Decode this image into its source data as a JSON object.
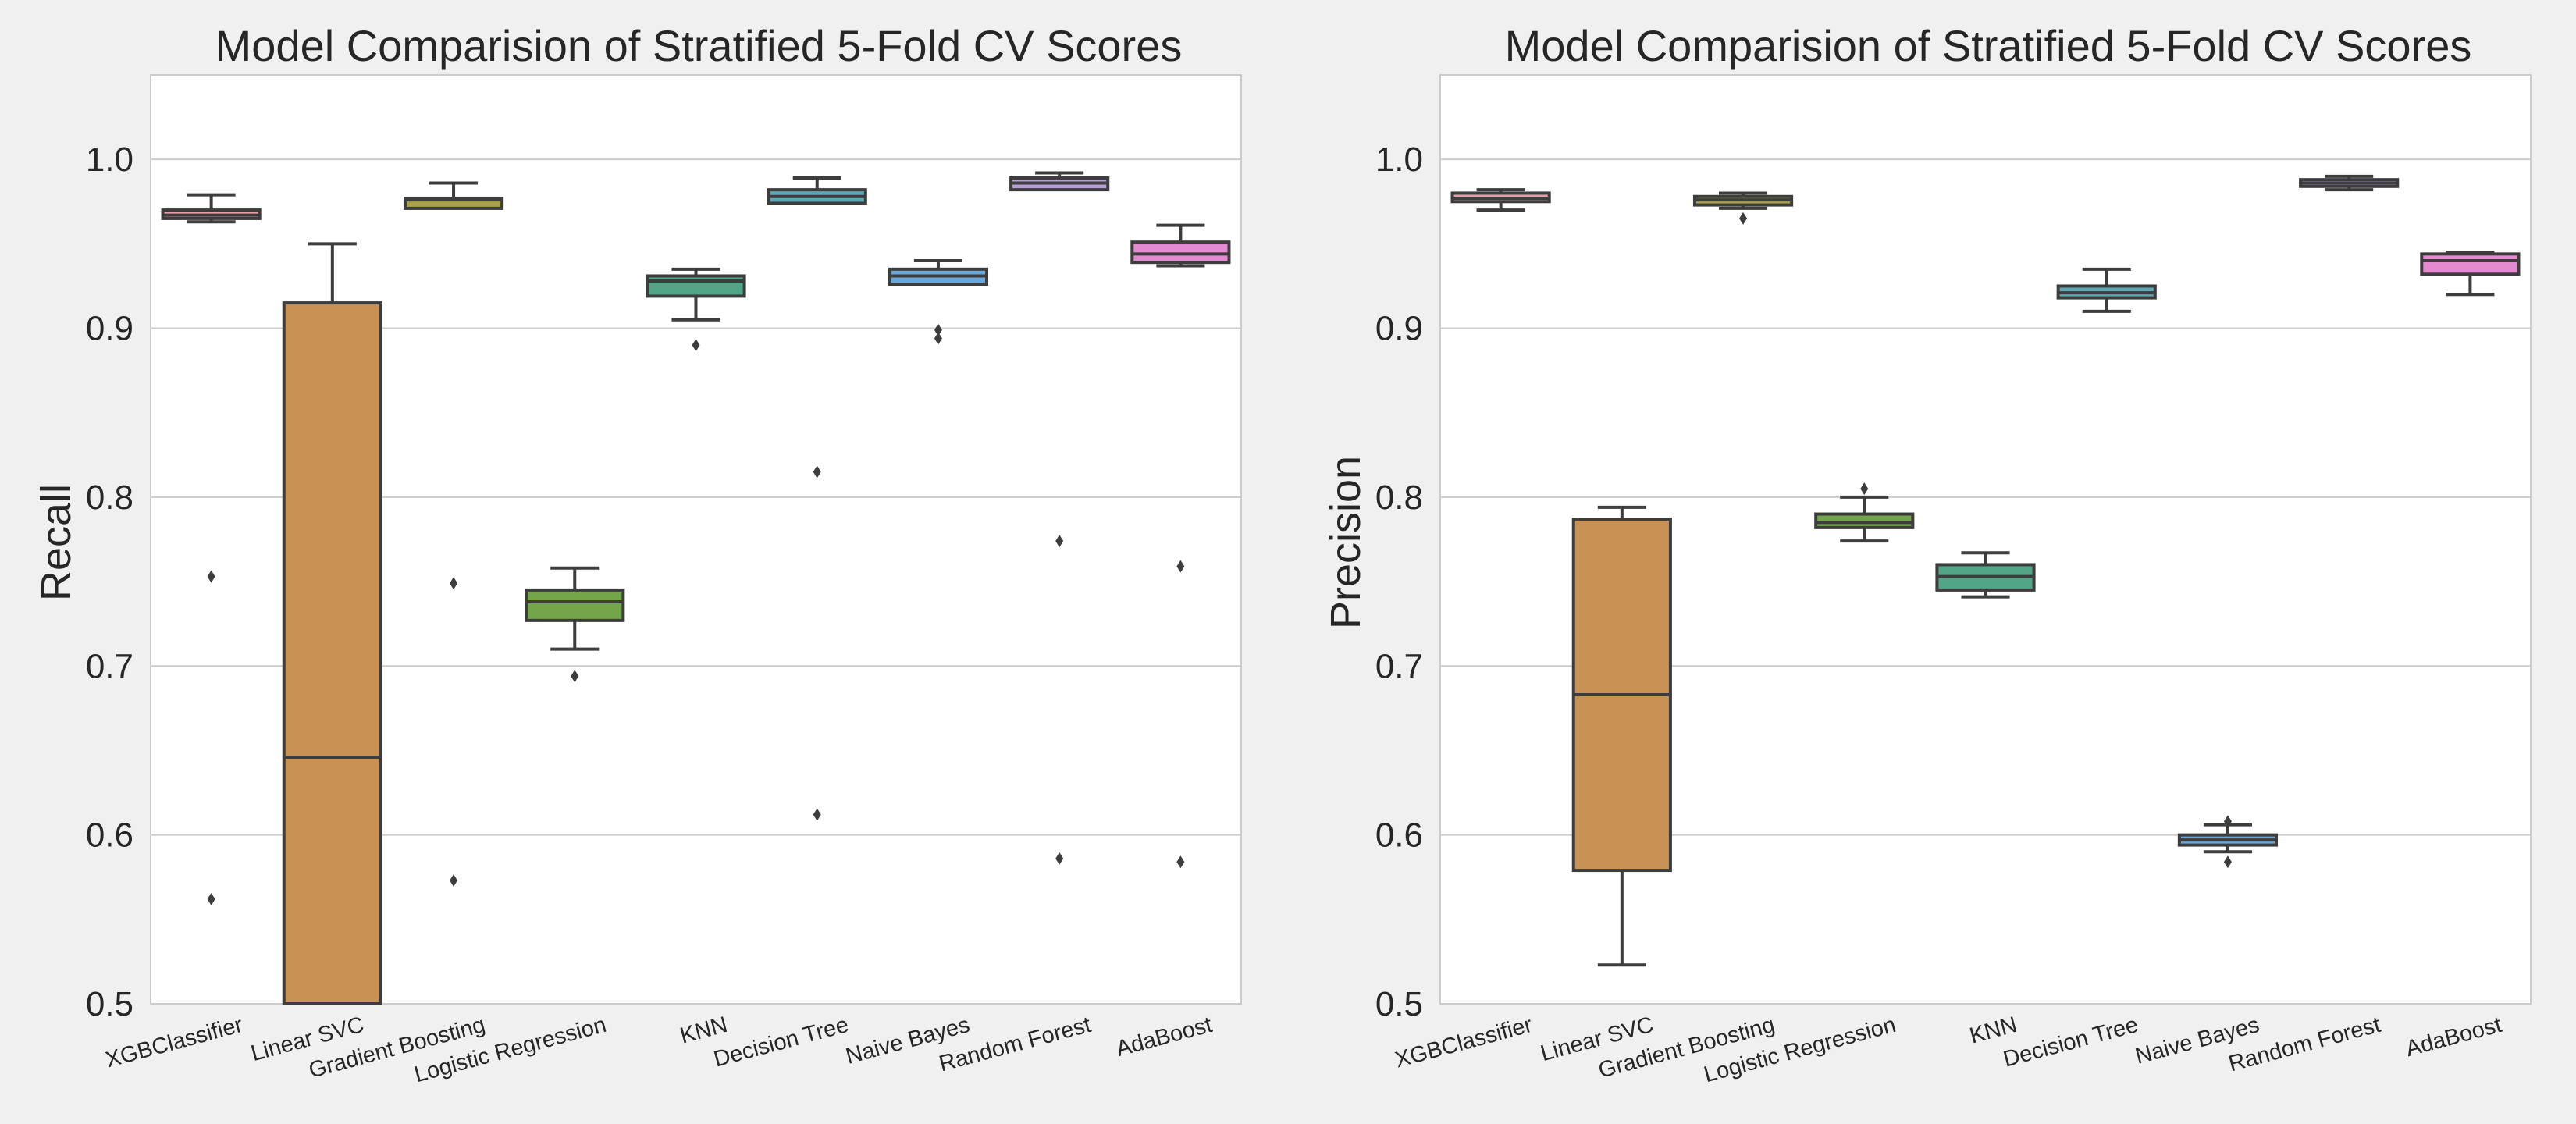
{
  "chart_data": [
    {
      "type": "box",
      "title": "Model Comparision of Stratified 5-Fold CV Scores",
      "xlabel": "",
      "ylabel": "Recall",
      "ylim": [
        0.5,
        1.05
      ],
      "yticks": [
        "0.5",
        "0.6",
        "0.7",
        "0.8",
        "0.9",
        "1.0"
      ],
      "grid": true,
      "categories": [
        "XGBClassifier",
        "Linear SVC",
        "Gradient Boosting",
        "Logistic Regression",
        "KNN",
        "Decision Tree",
        "Naive Bayes",
        "Random Forest",
        "AdaBoost"
      ],
      "boxes": [
        {
          "color": "#e8a0a8",
          "whisker_low": 0.963,
          "q1": 0.965,
          "median": 0.967,
          "q3": 0.97,
          "whisker_high": 0.979,
          "outliers": [
            0.753,
            0.562
          ]
        },
        {
          "color": "#c99255",
          "whisker_low": 0.5,
          "q1": 0.5,
          "median": 0.646,
          "q3": 0.915,
          "whisker_high": 0.95,
          "outliers": []
        },
        {
          "color": "#a9a245",
          "whisker_low": 0.971,
          "q1": 0.971,
          "median": 0.976,
          "q3": 0.977,
          "whisker_high": 0.986,
          "outliers": [
            0.749,
            0.573
          ]
        },
        {
          "color": "#73a649",
          "whisker_low": 0.71,
          "q1": 0.727,
          "median": 0.738,
          "q3": 0.745,
          "whisker_high": 0.758,
          "outliers": [
            0.694
          ]
        },
        {
          "color": "#52a587",
          "whisker_low": 0.905,
          "q1": 0.919,
          "median": 0.928,
          "q3": 0.931,
          "whisker_high": 0.935,
          "outliers": [
            0.89
          ]
        },
        {
          "color": "#5fa6b5",
          "whisker_low": 0.974,
          "q1": 0.974,
          "median": 0.978,
          "q3": 0.982,
          "whisker_high": 0.989,
          "outliers": [
            0.815,
            0.612
          ]
        },
        {
          "color": "#6ba6d9",
          "whisker_low": 0.926,
          "q1": 0.926,
          "median": 0.931,
          "q3": 0.935,
          "whisker_high": 0.94,
          "outliers": [
            0.899,
            0.894
          ]
        },
        {
          "color": "#b79ed6",
          "whisker_low": 0.982,
          "q1": 0.982,
          "median": 0.986,
          "q3": 0.989,
          "whisker_high": 0.992,
          "outliers": [
            0.774,
            0.586
          ]
        },
        {
          "color": "#e38ad0",
          "whisker_low": 0.937,
          "q1": 0.939,
          "median": 0.944,
          "q3": 0.951,
          "whisker_high": 0.961,
          "outliers": [
            0.759,
            0.584
          ]
        }
      ]
    },
    {
      "type": "box",
      "title": "Model Comparision of Stratified 5-Fold CV Scores",
      "xlabel": "",
      "ylabel": "Precision",
      "ylim": [
        0.5,
        1.05
      ],
      "yticks": [
        "0.5",
        "0.6",
        "0.7",
        "0.8",
        "0.9",
        "1.0"
      ],
      "grid": true,
      "categories": [
        "XGBClassifier",
        "Linear SVC",
        "Gradient Boosting",
        "Logistic Regression",
        "KNN",
        "Decision Tree",
        "Naive Bayes",
        "Random Forest",
        "AdaBoost"
      ],
      "boxes": [
        {
          "color": "#e8a0a8",
          "whisker_low": 0.97,
          "q1": 0.975,
          "median": 0.977,
          "q3": 0.98,
          "whisker_high": 0.982,
          "outliers": []
        },
        {
          "color": "#c99255",
          "whisker_low": 0.523,
          "q1": 0.579,
          "median": 0.683,
          "q3": 0.787,
          "whisker_high": 0.794,
          "outliers": []
        },
        {
          "color": "#a9a245",
          "whisker_low": 0.971,
          "q1": 0.973,
          "median": 0.976,
          "q3": 0.978,
          "whisker_high": 0.98,
          "outliers": [
            0.965
          ]
        },
        {
          "color": "#73a649",
          "whisker_low": 0.774,
          "q1": 0.782,
          "median": 0.785,
          "q3": 0.79,
          "whisker_high": 0.8,
          "outliers": [
            0.805
          ]
        },
        {
          "color": "#52a587",
          "whisker_low": 0.741,
          "q1": 0.745,
          "median": 0.753,
          "q3": 0.76,
          "whisker_high": 0.767,
          "outliers": []
        },
        {
          "color": "#5fa6b5",
          "whisker_low": 0.91,
          "q1": 0.918,
          "median": 0.921,
          "q3": 0.925,
          "whisker_high": 0.935,
          "outliers": []
        },
        {
          "color": "#6ba6d9",
          "whisker_low": 0.59,
          "q1": 0.594,
          "median": 0.597,
          "q3": 0.6,
          "whisker_high": 0.606,
          "outliers": [
            0.584,
            0.608
          ]
        },
        {
          "color": "#b79ed6",
          "whisker_low": 0.982,
          "q1": 0.984,
          "median": 0.986,
          "q3": 0.988,
          "whisker_high": 0.99,
          "outliers": []
        },
        {
          "color": "#e38ad0",
          "whisker_low": 0.92,
          "q1": 0.932,
          "median": 0.94,
          "q3": 0.944,
          "whisker_high": 0.945,
          "outliers": []
        }
      ]
    }
  ]
}
